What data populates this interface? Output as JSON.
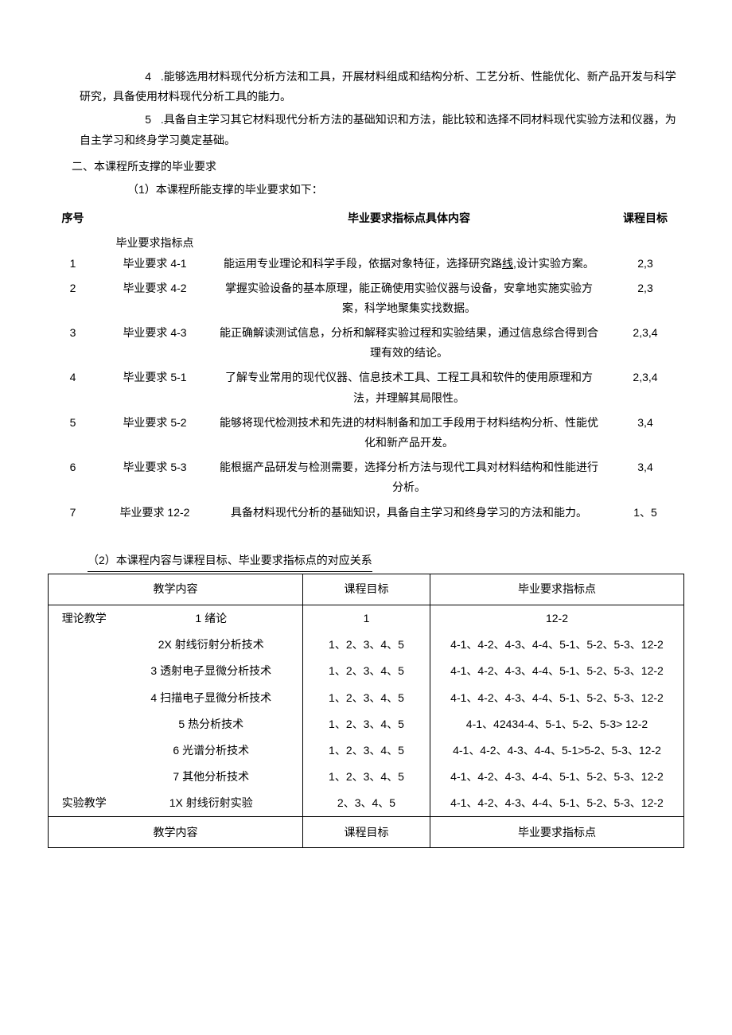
{
  "paragraphs": {
    "p4_num": "4",
    "p4_text": ".能够选用材料现代分析方法和工具，开展材料组成和结构分析、工艺分析、性能优化、新产品开发与科学研究，具备使用材料现代分析工具的能力。",
    "p5_num": "5",
    "p5_text": ".具备自主学习其它材料现代分析方法的基础知识和方法，能比较和选择不同材料现代实验方法和仪器，为自主学习和终身学习奠定基础。"
  },
  "section2_title": "二、本课程所支撑的毕业要求",
  "sub1_title": "（1）本课程所能支撑的毕业要求如下：",
  "table1": {
    "head_idx": "序号",
    "head_pt_extra": "毕业要求指标点",
    "head_desc": "毕业要求指标点具体内容",
    "head_goal": "课程目标",
    "rows": [
      {
        "idx": "1",
        "pt": "毕业要求 4-1",
        "desc_a": "能运用专业理论和科学手段，依据对象特征，选择研究路",
        "desc_u": "线,",
        "desc_b": "设计实验方案。",
        "goal": "2,3"
      },
      {
        "idx": "2",
        "pt": "毕业要求 4-2",
        "desc": "掌握实验设备的基本原理，能正确使用实验仪器与设备，安拿地实施实验方案，科学地聚集实找数据。",
        "goal": "2,3"
      },
      {
        "idx": "3",
        "pt": "毕业要求 4-3",
        "desc": "能正确解读测试信息，分析和解释实验过程和实验结果，通过信息综合得到合理有效的结论。",
        "goal": "2,3,4"
      },
      {
        "idx": "4",
        "pt": "毕业要求 5-1",
        "desc": "了解专业常用的现代仪器、信息技术工具、工程工具和软件的使用原理和方法，并理解其局限性。",
        "goal": "2,3,4"
      },
      {
        "idx": "5",
        "pt": "毕业要求 5-2",
        "desc": "能够将现代检测技术和先进的材料制备和加工手段用于材料结构分析、性能优化和新产品开发。",
        "goal": "3,4"
      },
      {
        "idx": "6",
        "pt": "毕业要求 5-3",
        "desc": "能根据产品研发与检测需要，选择分析方法与现代工具对材料结构和性能进行分析。",
        "goal": "3,4"
      },
      {
        "idx": "7",
        "pt": "毕业要求 12-2",
        "desc": "具备材料现代分析的基础知识，具备自主学习和终身学习的方法和能力。",
        "goal": "1、5"
      }
    ]
  },
  "sub2_title": "（2）本课程内容与课程目标、毕业要求指标点的对应关系",
  "table2": {
    "head_content": "教学内容",
    "head_goal": "课程目标",
    "head_req": "毕业要求指标点",
    "cat_theory": "理论教学",
    "cat_exp": "实验教学",
    "rows": [
      {
        "cat": "理论教学",
        "content": "1 绪论",
        "goal": "1",
        "req": "12-2"
      },
      {
        "cat": "",
        "content": "2X 射线衍射分析技术",
        "goal": "1、2、3、4、5",
        "req": "4-1、4-2、4-3、4-4、5-1、5-2、5-3、12-2"
      },
      {
        "cat": "",
        "content": "3 透射电子显微分析技术",
        "goal": "1、2、3、4、5",
        "req": "4-1、4-2、4-3、4-4、5-1、5-2、5-3、12-2"
      },
      {
        "cat": "",
        "content": "4 扫描电子显微分析技术",
        "goal": "1、2、3、4、5",
        "req": "4-1、4-2、4-3、4-4、5-1、5-2、5-3、12-2"
      },
      {
        "cat": "",
        "content": "5 热分析技术",
        "goal": "1、2、3、4、5",
        "req": "4-1、42434-4、5-1、5-2、5-3> 12-2"
      },
      {
        "cat": "",
        "content": "6 光谱分析技术",
        "goal": "1、2、3、4、5",
        "req": "4-1、4-2、4-3、4-4、5-1>5-2、5-3、12-2"
      },
      {
        "cat": "",
        "content": "7 其他分析技术",
        "goal": "1、2、3、4、5",
        "req": "4-1、4-2、4-3、4-4、5-1、5-2、5-3、12-2"
      },
      {
        "cat": "实验教学",
        "content": "1X 射线衍射实验",
        "goal": "2、3、4、5",
        "req": "4-1、4-2、4-3、4-4、5-1、5-2、5-3、12-2"
      }
    ],
    "foot_content": "教学内容",
    "foot_goal": "课程目标",
    "foot_req": "毕业要求指标点"
  }
}
